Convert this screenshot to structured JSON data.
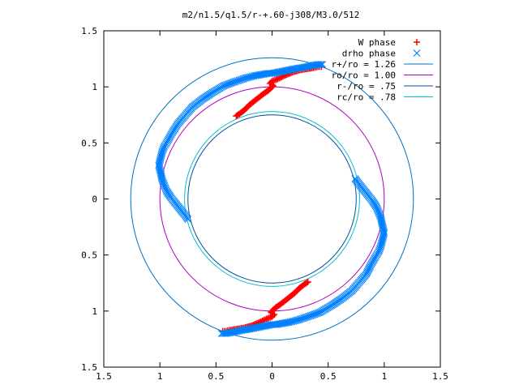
{
  "chart_data": {
    "type": "scatter",
    "title": "m2/n1.5/q1.5/r-+.60-j308/M3.0/512",
    "xlabel": "",
    "ylabel": "",
    "xlim": [
      -1.5,
      1.5
    ],
    "ylim": [
      -1.5,
      1.5
    ],
    "x_ticks": [
      -1.5,
      -1,
      -0.5,
      0,
      0.5,
      1,
      1.5
    ],
    "y_ticks": [
      -1.5,
      -1,
      -0.5,
      0,
      0.5,
      1,
      1.5
    ],
    "x_tick_labels": [
      "1.5",
      "1",
      "0.5",
      "0",
      "0.5",
      "1",
      "1.5"
    ],
    "y_tick_labels": [
      "1.5",
      "1",
      "0.5",
      "0",
      "0.5",
      "1",
      "1.5"
    ],
    "grid": false,
    "legend_position": "top-right",
    "series": [
      {
        "name": "W phase",
        "marker": "+",
        "color": "#ff0000",
        "points": [
          [
            -0.32,
            0.74
          ],
          [
            -0.29,
            0.76
          ],
          [
            -0.25,
            0.79
          ],
          [
            -0.2,
            0.84
          ],
          [
            -0.15,
            0.88
          ],
          [
            -0.1,
            0.92
          ],
          [
            -0.06,
            0.95
          ],
          [
            -0.03,
            0.97
          ],
          [
            -0.01,
            0.99
          ],
          [
            0.0,
            1.0
          ],
          [
            0.01,
            1.01
          ],
          [
            0.0,
            1.02
          ],
          [
            -0.02,
            1.03
          ],
          [
            0.0,
            1.05
          ],
          [
            0.05,
            1.07
          ],
          [
            0.11,
            1.1
          ],
          [
            0.18,
            1.13
          ],
          [
            0.25,
            1.15
          ],
          [
            0.31,
            1.16
          ],
          [
            0.37,
            1.17
          ],
          [
            0.41,
            1.18
          ],
          [
            0.44,
            1.18
          ],
          [
            0.32,
            -0.74
          ],
          [
            0.29,
            -0.76
          ],
          [
            0.25,
            -0.79
          ],
          [
            0.2,
            -0.84
          ],
          [
            0.15,
            -0.88
          ],
          [
            0.1,
            -0.92
          ],
          [
            0.06,
            -0.95
          ],
          [
            0.03,
            -0.97
          ],
          [
            0.01,
            -0.99
          ],
          [
            0.0,
            -1.0
          ],
          [
            -0.01,
            -1.01
          ],
          [
            0.0,
            -1.02
          ],
          [
            0.02,
            -1.03
          ],
          [
            0.0,
            -1.05
          ],
          [
            -0.05,
            -1.07
          ],
          [
            -0.11,
            -1.1
          ],
          [
            -0.18,
            -1.13
          ],
          [
            -0.25,
            -1.15
          ],
          [
            -0.31,
            -1.16
          ],
          [
            -0.37,
            -1.17
          ],
          [
            -0.41,
            -1.18
          ],
          [
            -0.44,
            -1.18
          ]
        ]
      },
      {
        "name": "drho phase",
        "marker": "x",
        "color": "#0080ff",
        "points": [
          [
            -0.75,
            -0.18
          ],
          [
            -0.78,
            -0.14
          ],
          [
            -0.82,
            -0.09
          ],
          [
            -0.86,
            -0.04
          ],
          [
            -0.9,
            0.01
          ],
          [
            -0.94,
            0.07
          ],
          [
            -0.96,
            0.12
          ],
          [
            -0.98,
            0.17
          ],
          [
            -0.99,
            0.22
          ],
          [
            -1.0,
            0.26
          ],
          [
            -1.01,
            0.3
          ],
          [
            -1.0,
            0.34
          ],
          [
            -0.99,
            0.38
          ],
          [
            -0.98,
            0.42
          ],
          [
            -0.96,
            0.47
          ],
          [
            -0.93,
            0.52
          ],
          [
            -0.89,
            0.59
          ],
          [
            -0.84,
            0.67
          ],
          [
            -0.78,
            0.74
          ],
          [
            -0.71,
            0.82
          ],
          [
            -0.62,
            0.89
          ],
          [
            -0.53,
            0.95
          ],
          [
            -0.43,
            1.01
          ],
          [
            -0.32,
            1.05
          ],
          [
            -0.23,
            1.08
          ],
          [
            -0.15,
            1.1
          ],
          [
            -0.09,
            1.11
          ],
          [
            -0.04,
            1.12
          ],
          [
            0.0,
            1.12
          ],
          [
            0.05,
            1.13
          ],
          [
            0.1,
            1.14
          ],
          [
            0.15,
            1.15
          ],
          [
            0.2,
            1.16
          ],
          [
            0.26,
            1.17
          ],
          [
            0.31,
            1.18
          ],
          [
            0.36,
            1.19
          ],
          [
            0.41,
            1.2
          ],
          [
            0.45,
            1.2
          ],
          [
            0.74,
            0.18
          ],
          [
            0.77,
            0.14
          ],
          [
            0.81,
            0.09
          ],
          [
            0.85,
            0.04
          ],
          [
            0.89,
            -0.01
          ],
          [
            0.93,
            -0.07
          ],
          [
            0.95,
            -0.12
          ],
          [
            0.97,
            -0.17
          ],
          [
            0.98,
            -0.22
          ],
          [
            0.99,
            -0.26
          ],
          [
            1.0,
            -0.3
          ],
          [
            0.99,
            -0.34
          ],
          [
            0.98,
            -0.38
          ],
          [
            0.97,
            -0.42
          ],
          [
            0.95,
            -0.47
          ],
          [
            0.92,
            -0.52
          ],
          [
            0.88,
            -0.59
          ],
          [
            0.84,
            -0.67
          ],
          [
            0.78,
            -0.74
          ],
          [
            0.71,
            -0.82
          ],
          [
            0.62,
            -0.89
          ],
          [
            0.53,
            -0.95
          ],
          [
            0.43,
            -1.01
          ],
          [
            0.32,
            -1.05
          ],
          [
            0.23,
            -1.08
          ],
          [
            0.15,
            -1.1
          ],
          [
            0.09,
            -1.11
          ],
          [
            0.04,
            -1.12
          ],
          [
            0.0,
            -1.12
          ],
          [
            -0.05,
            -1.13
          ],
          [
            -0.1,
            -1.14
          ],
          [
            -0.15,
            -1.15
          ],
          [
            -0.2,
            -1.16
          ],
          [
            -0.26,
            -1.17
          ],
          [
            -0.31,
            -1.18
          ],
          [
            -0.36,
            -1.19
          ],
          [
            -0.41,
            -1.2
          ],
          [
            -0.45,
            -1.2
          ]
        ]
      },
      {
        "name": "r+/ro = 1.26",
        "type": "circle",
        "radius": 1.26,
        "color": "#0070c0"
      },
      {
        "name": "ro/ro = 1.00",
        "type": "circle",
        "radius": 1.0,
        "color": "#b000c0"
      },
      {
        "name": "r-/ro = .75",
        "type": "circle",
        "radius": 0.75,
        "color": "#0050a0"
      },
      {
        "name": "rc/ro = .78",
        "type": "circle",
        "radius": 0.78,
        "color": "#00c0d0"
      }
    ]
  }
}
